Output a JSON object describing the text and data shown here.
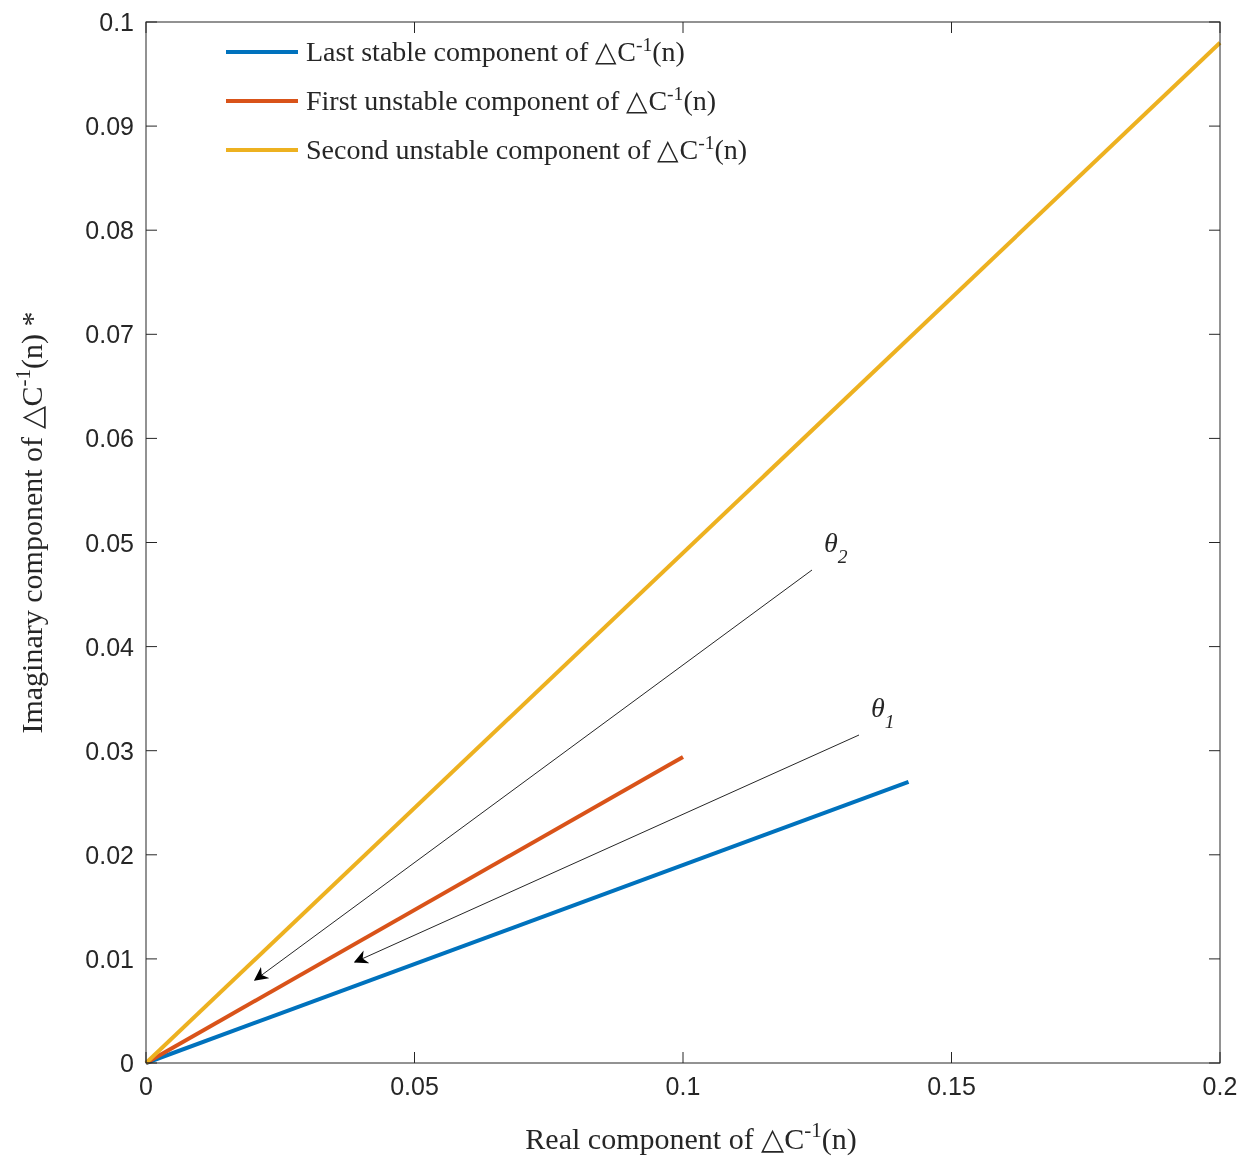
{
  "chart_data": {
    "type": "line",
    "xlabel": "Real component of △C$^{-1}$(n)",
    "ylabel": "Imaginary component of △C$^{-1}$(n) *",
    "series": [
      {
        "name": "Last stable component of △C$^{-1}$(n)",
        "color": "#0072bd",
        "x": [
          0,
          0.142
        ],
        "values": [
          0,
          0.027
        ]
      },
      {
        "name": "First unstable component of △C$^{-1}$(n)",
        "color": "#d95319",
        "x": [
          0,
          0.1
        ],
        "values": [
          0,
          0.0294
        ]
      },
      {
        "name": "Second unstable component of △C$^{-1}$(n)",
        "color": "#edb120",
        "x": [
          0,
          0.2
        ],
        "values": [
          0,
          0.098
        ]
      }
    ],
    "annotations": [
      "θ$_{2}$",
      "θ$_{1}$"
    ],
    "xlim": [
      0,
      0.2
    ],
    "xticks": [
      0,
      0.05,
      0.1,
      0.15,
      0.2
    ],
    "ylim": [
      0,
      0.1
    ],
    "yticks": [
      0,
      0.01,
      0.02,
      0.03,
      0.04,
      0.05,
      0.06,
      0.07,
      0.08,
      0.09,
      0.1
    ],
    "grid": false,
    "legend": "top left",
    "marker": "none",
    "line_style": "solid"
  }
}
